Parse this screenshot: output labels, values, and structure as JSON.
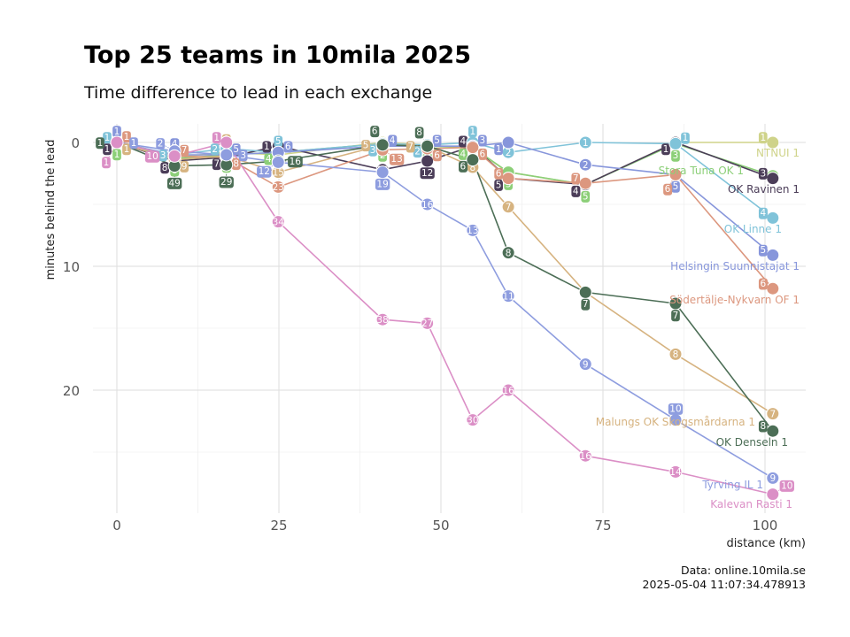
{
  "chart_data": {
    "type": "line",
    "title": "Top 25 teams in 10mila 2025",
    "subtitle": "Time difference to lead in each exchange",
    "xlabel": "distance (km)",
    "ylabel": "minutes behind the lead",
    "xlim": [
      -3,
      104
    ],
    "ylim": [
      0,
      30
    ],
    "y_reversed": true,
    "x_ticks": [
      0,
      25,
      50,
      75,
      100
    ],
    "y_ticks": [
      0,
      10,
      20
    ],
    "grid": true,
    "caption": [
      "Data: online.10mila.se",
      "2025-05-04 11:07:34.478913"
    ],
    "x": [
      0,
      8.9,
      16.9,
      24.9,
      41.0,
      47.9,
      54.9,
      60.4,
      72.3,
      86.2,
      101.2
    ],
    "series": [
      {
        "name": "NTNUI 1",
        "color": "#cfd38a",
        "values": [
          0,
          1.2,
          0.8,
          1.0,
          0.0,
          0.2,
          0.5,
          2.4,
          3.4,
          0.0,
          0.0
        ],
        "ranks": [
          1,
          5,
          4,
          5,
          1,
          3,
          5,
          4,
          6,
          2,
          1
        ]
      },
      {
        "name": "Stora Tuna OK 1",
        "color": "#8ccf78",
        "values": [
          0,
          1.3,
          1.0,
          0.8,
          0.1,
          0.3,
          0.4,
          2.4,
          3.4,
          0.1,
          2.7
        ],
        "ranks": [
          1,
          6,
          6,
          4,
          2,
          4,
          4,
          3,
          5,
          3,
          2
        ]
      },
      {
        "name": "OK Ravinen 1",
        "color": "#4b3d58",
        "values": [
          0,
          1.5,
          1.2,
          0.3,
          2.2,
          1.5,
          0.3,
          2.9,
          3.4,
          0.0,
          2.9
        ],
        "ranks": [
          1,
          8,
          7,
          1,
          16,
          12,
          4,
          5,
          4,
          1,
          3
        ]
      },
      {
        "name": "OK Linne 1",
        "color": "#80c3d9",
        "values": [
          0,
          1.0,
          0.5,
          0.8,
          0.1,
          0.2,
          0.0,
          0.8,
          0.0,
          0.1,
          6.1
        ],
        "ranks": [
          1,
          3,
          2,
          5,
          3,
          2,
          1,
          2,
          1,
          1,
          4
        ]
      },
      {
        "name": "Helsingin Suunnistajat 1",
        "color": "#8796db",
        "values": [
          0,
          1.0,
          1.0,
          0.8,
          0.3,
          0.3,
          0.3,
          0.0,
          1.8,
          2.6,
          9.1
        ],
        "ranks": [
          1,
          4,
          5,
          6,
          4,
          5,
          3,
          1,
          2,
          5,
          5
        ]
      },
      {
        "name": "Södertälje-Nykvarn OF 1",
        "color": "#dc977f",
        "values": [
          0,
          1.1,
          1.2,
          3.6,
          0.6,
          0.5,
          0.4,
          2.9,
          3.3,
          2.6,
          11.8
        ],
        "ranks": [
          1,
          7,
          8,
          23,
          13,
          6,
          6,
          6,
          7,
          6,
          6
        ]
      },
      {
        "name": "Malungs OK Skogsmårdarna 1",
        "color": "#d6b380",
        "values": [
          0,
          1.4,
          1.1,
          2.4,
          0.2,
          0.3,
          2.0,
          5.2,
          12.1,
          17.1,
          21.9
        ],
        "ranks": [
          1,
          9,
          9,
          15,
          5,
          7,
          8,
          7,
          8,
          8,
          7
        ]
      },
      {
        "name": "OK Denseln 1",
        "color": "#4c6e56",
        "values": [
          0,
          1.9,
          1.8,
          1.5,
          0.2,
          0.3,
          1.4,
          8.9,
          12.1,
          13.0,
          23.3
        ],
        "ranks": [
          1,
          49,
          29,
          16,
          6,
          8,
          6,
          8,
          7,
          7,
          8
        ]
      },
      {
        "name": "Tyrving IL 1",
        "color": "#8e9ddf",
        "values": [
          0,
          0.7,
          1.0,
          1.6,
          2.4,
          5.0,
          7.1,
          12.4,
          17.9,
          22.4,
          27.1
        ],
        "ranks": [
          1,
          2,
          3,
          12,
          19,
          16,
          13,
          11,
          9,
          10,
          9
        ]
      },
      {
        "name": "Kalevan Rasti 1",
        "color": "#db8fc6",
        "values": [
          0,
          1.1,
          0.0,
          6.4,
          14.3,
          14.6,
          22.4,
          20.0,
          25.3,
          26.6,
          28.4
        ],
        "ranks": [
          1,
          10,
          1,
          34,
          38,
          27,
          30,
          16,
          16,
          14,
          10
        ]
      }
    ]
  }
}
